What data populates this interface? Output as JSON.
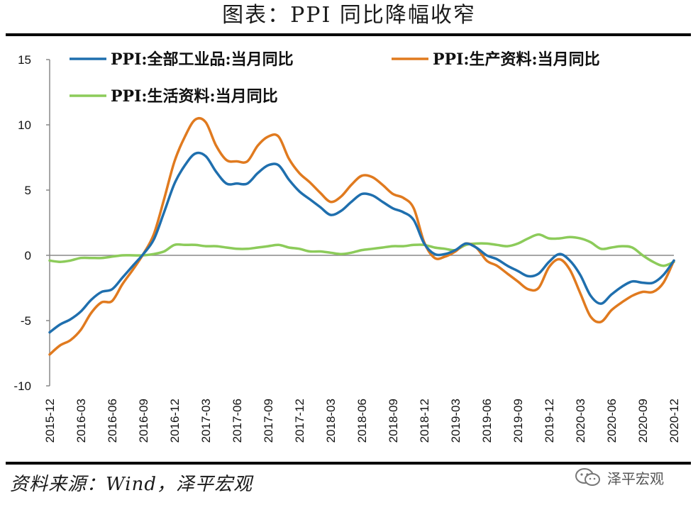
{
  "title": "图表：PPI 同比降幅收窄",
  "source": "资料来源：Wind，泽平宏观",
  "watermark": "泽平宏观",
  "watermark_icon": "wechat-icon",
  "colors": {
    "industrial": "#1F6FAE",
    "production": "#E07A1F",
    "living": "#8CCB5A",
    "axis": "#888888"
  },
  "chart_data": {
    "type": "line",
    "title": "图表：PPI 同比降幅收窄",
    "xlabel": "",
    "ylabel": "",
    "ylim": [
      -10,
      15
    ],
    "yticks": [
      15,
      10,
      5,
      0,
      -5,
      -10
    ],
    "xtick_labels": [
      "2015-12",
      "2016-03",
      "2016-06",
      "2016-09",
      "2016-12",
      "2017-03",
      "2017-06",
      "2017-09",
      "2017-12",
      "2018-03",
      "2018-06",
      "2018-09",
      "2018-12",
      "2019-03",
      "2019-06",
      "2019-09",
      "2019-12",
      "2020-03",
      "2020-06",
      "2020-09",
      "2020-12"
    ],
    "legend_position": "top",
    "grid": false,
    "x": [
      "2015-12",
      "2016-01",
      "2016-02",
      "2016-03",
      "2016-04",
      "2016-05",
      "2016-06",
      "2016-07",
      "2016-08",
      "2016-09",
      "2016-10",
      "2016-11",
      "2016-12",
      "2017-01",
      "2017-02",
      "2017-03",
      "2017-04",
      "2017-05",
      "2017-06",
      "2017-07",
      "2017-08",
      "2017-09",
      "2017-10",
      "2017-11",
      "2017-12",
      "2018-01",
      "2018-02",
      "2018-03",
      "2018-04",
      "2018-05",
      "2018-06",
      "2018-07",
      "2018-08",
      "2018-09",
      "2018-10",
      "2018-11",
      "2018-12",
      "2019-01",
      "2019-02",
      "2019-03",
      "2019-04",
      "2019-05",
      "2019-06",
      "2019-07",
      "2019-08",
      "2019-09",
      "2019-10",
      "2019-11",
      "2019-12",
      "2020-01",
      "2020-02",
      "2020-03",
      "2020-04",
      "2020-05",
      "2020-06",
      "2020-07",
      "2020-08",
      "2020-09",
      "2020-10",
      "2020-11",
      "2020-12"
    ],
    "series": [
      {
        "name": "PPI:全部工业品:当月同比",
        "color": "#1F6FAE",
        "values": [
          -5.9,
          -5.3,
          -4.9,
          -4.3,
          -3.4,
          -2.8,
          -2.6,
          -1.7,
          -0.8,
          0.1,
          1.2,
          3.3,
          5.5,
          6.9,
          7.8,
          7.6,
          6.4,
          5.5,
          5.5,
          5.5,
          6.3,
          6.9,
          6.9,
          5.8,
          4.9,
          4.3,
          3.7,
          3.1,
          3.4,
          4.1,
          4.7,
          4.6,
          4.1,
          3.6,
          3.3,
          2.7,
          0.9,
          0.1,
          0.1,
          0.4,
          0.9,
          0.6,
          0.0,
          -0.3,
          -0.8,
          -1.2,
          -1.6,
          -1.4,
          -0.5,
          0.1,
          -0.4,
          -1.5,
          -3.1,
          -3.7,
          -3.0,
          -2.4,
          -2.0,
          -2.1,
          -2.1,
          -1.5,
          -0.4
        ]
      },
      {
        "name": "PPI:生产资料:当月同比",
        "color": "#E07A1F",
        "values": [
          -7.6,
          -6.9,
          -6.5,
          -5.7,
          -4.4,
          -3.6,
          -3.5,
          -2.2,
          -1.1,
          0.1,
          1.6,
          4.3,
          7.2,
          9.1,
          10.4,
          10.2,
          8.4,
          7.3,
          7.2,
          7.2,
          8.4,
          9.1,
          9.1,
          7.4,
          6.3,
          5.6,
          4.8,
          4.1,
          4.5,
          5.4,
          6.1,
          6.0,
          5.4,
          4.7,
          4.4,
          3.6,
          1.0,
          -0.2,
          -0.1,
          0.3,
          0.9,
          0.6,
          -0.4,
          -0.8,
          -1.4,
          -2.0,
          -2.6,
          -2.5,
          -0.9,
          -0.3,
          -1.1,
          -2.9,
          -4.7,
          -5.1,
          -4.2,
          -3.6,
          -3.1,
          -2.8,
          -2.8,
          -2.1,
          -0.4
        ]
      },
      {
        "name": "PPI:生活资料:当月同比",
        "color": "#8CCB5A",
        "values": [
          -0.4,
          -0.5,
          -0.4,
          -0.2,
          -0.2,
          -0.2,
          -0.1,
          0.0,
          0.0,
          0.0,
          0.1,
          0.3,
          0.8,
          0.8,
          0.8,
          0.7,
          0.7,
          0.6,
          0.5,
          0.5,
          0.6,
          0.7,
          0.8,
          0.6,
          0.5,
          0.3,
          0.3,
          0.2,
          0.1,
          0.2,
          0.4,
          0.5,
          0.6,
          0.7,
          0.7,
          0.8,
          0.8,
          0.6,
          0.5,
          0.4,
          0.8,
          0.9,
          0.9,
          0.8,
          0.7,
          0.9,
          1.3,
          1.6,
          1.3,
          1.3,
          1.4,
          1.3,
          1.0,
          0.5,
          0.6,
          0.7,
          0.6,
          0.0,
          -0.5,
          -0.8,
          -0.5
        ]
      }
    ]
  }
}
